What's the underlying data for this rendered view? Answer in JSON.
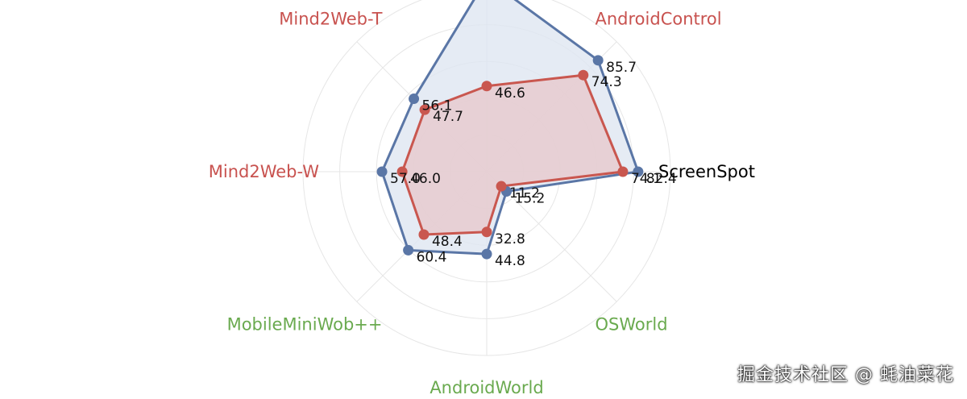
{
  "chart_data": {
    "type": "radar",
    "axes": [
      {
        "name": "ScreenSpot",
        "color": "#000000"
      },
      {
        "name": "AndroidControl",
        "color": "#c8524f"
      },
      {
        "name": "",
        "color": "#000000"
      },
      {
        "name": "Mind2Web-T",
        "color": "#c8524f"
      },
      {
        "name": "Mind2Web-W",
        "color": "#c8524f"
      },
      {
        "name": "MobileMiniWob++",
        "color": "#6aaa4f"
      },
      {
        "name": "AndroidWorld",
        "color": "#6aaa4f"
      },
      {
        "name": "OSWorld",
        "color": "#6aaa4f"
      }
    ],
    "series": [
      {
        "values": [
          82.4,
          85.7,
          null,
          56.1,
          57.0,
          60.4,
          44.8,
          15.2
        ],
        "color": "#5a76a6",
        "fill": "#dfe6f1"
      },
      {
        "values": [
          74.1,
          74.3,
          46.6,
          47.7,
          46.0,
          48.4,
          32.8,
          11.2
        ],
        "color": "#c9574f",
        "fill": "#e7c9cd"
      }
    ]
  },
  "watermark": "掘金技术社区 @ 蚝油菜花"
}
